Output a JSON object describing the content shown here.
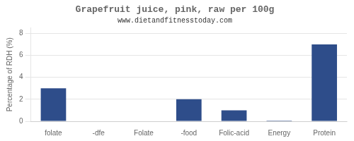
{
  "chart_data": {
    "type": "bar",
    "title": "Grapefruit juice, pink, raw per 100g",
    "subtitle": "www.dietandfitnesstoday.com",
    "categories": [
      "folate",
      "-dfe",
      "Folate",
      "-food",
      "Folic-acid",
      "Energy",
      "Protein"
    ],
    "values": [
      3.0,
      0.04,
      0.04,
      2.0,
      1.0,
      0.07,
      7.0
    ],
    "color": "#2e4d8a",
    "ylabel": "Percentage of RDH (%)",
    "ylim": [
      0,
      8.5
    ],
    "yticks": [
      0,
      2,
      4,
      6,
      8
    ],
    "grid": true
  }
}
